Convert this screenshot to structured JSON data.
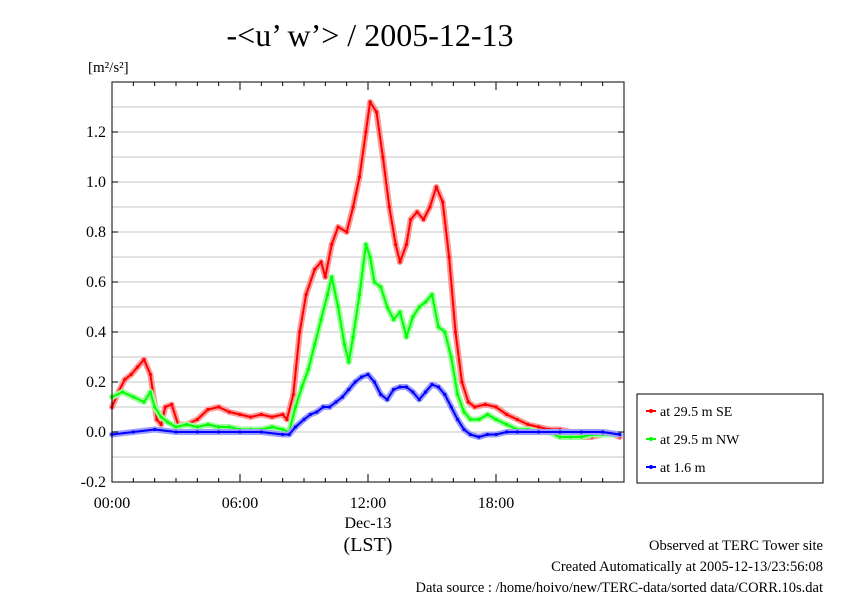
{
  "chart_data": {
    "type": "line",
    "title": "-<u’ w’> / 2005-12-13",
    "yunit": "[m²/s²]",
    "xlabel": "(LST)",
    "date_label": "Dec-13",
    "x_ticks": [
      "00:00",
      "06:00",
      "12:00",
      "18:00"
    ],
    "y_ticks": [
      "-0.2",
      "0.0",
      "0.2",
      "0.4",
      "0.6",
      "0.8",
      "1.0",
      "1.2"
    ],
    "xlim": [
      0,
      24
    ],
    "ylim": [
      -0.2,
      1.4
    ],
    "grid": true,
    "legend_position": "right",
    "series": [
      {
        "name": "at 29.5 m SE",
        "color": "#ff0000",
        "points": [
          [
            0.0,
            0.1
          ],
          [
            0.3,
            0.16
          ],
          [
            0.6,
            0.21
          ],
          [
            0.9,
            0.23
          ],
          [
            1.2,
            0.26
          ],
          [
            1.5,
            0.29
          ],
          [
            1.8,
            0.23
          ],
          [
            2.1,
            0.05
          ],
          [
            2.3,
            0.03
          ],
          [
            2.5,
            0.1
          ],
          [
            2.8,
            0.11
          ],
          [
            3.1,
            0.03
          ],
          [
            3.5,
            0.03
          ],
          [
            4.0,
            0.05
          ],
          [
            4.5,
            0.09
          ],
          [
            5.0,
            0.1
          ],
          [
            5.5,
            0.08
          ],
          [
            6.0,
            0.07
          ],
          [
            6.5,
            0.06
          ],
          [
            7.0,
            0.07
          ],
          [
            7.5,
            0.06
          ],
          [
            8.0,
            0.07
          ],
          [
            8.2,
            0.05
          ],
          [
            8.5,
            0.15
          ],
          [
            8.8,
            0.4
          ],
          [
            9.1,
            0.55
          ],
          [
            9.5,
            0.65
          ],
          [
            9.8,
            0.68
          ],
          [
            10.0,
            0.62
          ],
          [
            10.3,
            0.75
          ],
          [
            10.6,
            0.82
          ],
          [
            11.0,
            0.8
          ],
          [
            11.3,
            0.9
          ],
          [
            11.6,
            1.02
          ],
          [
            11.9,
            1.2
          ],
          [
            12.1,
            1.32
          ],
          [
            12.4,
            1.28
          ],
          [
            12.7,
            1.1
          ],
          [
            13.0,
            0.9
          ],
          [
            13.3,
            0.75
          ],
          [
            13.5,
            0.68
          ],
          [
            13.8,
            0.75
          ],
          [
            14.0,
            0.85
          ],
          [
            14.3,
            0.88
          ],
          [
            14.6,
            0.85
          ],
          [
            14.9,
            0.9
          ],
          [
            15.2,
            0.98
          ],
          [
            15.5,
            0.92
          ],
          [
            15.8,
            0.7
          ],
          [
            16.1,
            0.4
          ],
          [
            16.4,
            0.2
          ],
          [
            16.7,
            0.12
          ],
          [
            17.0,
            0.1
          ],
          [
            17.5,
            0.11
          ],
          [
            18.0,
            0.1
          ],
          [
            18.5,
            0.07
          ],
          [
            19.0,
            0.05
          ],
          [
            19.5,
            0.03
          ],
          [
            20.0,
            0.02
          ],
          [
            20.5,
            0.01
          ],
          [
            21.0,
            0.01
          ],
          [
            21.5,
            0.0
          ],
          [
            22.0,
            -0.02
          ],
          [
            22.5,
            -0.02
          ],
          [
            23.0,
            -0.01
          ],
          [
            23.5,
            -0.01
          ],
          [
            23.8,
            -0.02
          ]
        ]
      },
      {
        "name": "at 29.5 m NW",
        "color": "#00ff00",
        "points": [
          [
            0.0,
            0.14
          ],
          [
            0.5,
            0.16
          ],
          [
            1.0,
            0.14
          ],
          [
            1.5,
            0.12
          ],
          [
            1.8,
            0.16
          ],
          [
            2.0,
            0.1
          ],
          [
            2.3,
            0.06
          ],
          [
            2.6,
            0.04
          ],
          [
            3.0,
            0.02
          ],
          [
            3.5,
            0.03
          ],
          [
            4.0,
            0.02
          ],
          [
            4.5,
            0.03
          ],
          [
            5.0,
            0.02
          ],
          [
            5.5,
            0.02
          ],
          [
            6.0,
            0.01
          ],
          [
            6.5,
            0.01
          ],
          [
            7.0,
            0.01
          ],
          [
            7.5,
            0.02
          ],
          [
            8.0,
            0.01
          ],
          [
            8.3,
            0.0
          ],
          [
            8.6,
            0.1
          ],
          [
            8.9,
            0.18
          ],
          [
            9.2,
            0.25
          ],
          [
            9.5,
            0.35
          ],
          [
            9.8,
            0.45
          ],
          [
            10.1,
            0.55
          ],
          [
            10.3,
            0.62
          ],
          [
            10.6,
            0.5
          ],
          [
            10.9,
            0.35
          ],
          [
            11.1,
            0.28
          ],
          [
            11.3,
            0.38
          ],
          [
            11.6,
            0.55
          ],
          [
            11.9,
            0.75
          ],
          [
            12.1,
            0.7
          ],
          [
            12.3,
            0.6
          ],
          [
            12.6,
            0.58
          ],
          [
            12.9,
            0.5
          ],
          [
            13.2,
            0.45
          ],
          [
            13.5,
            0.48
          ],
          [
            13.8,
            0.38
          ],
          [
            14.1,
            0.46
          ],
          [
            14.4,
            0.5
          ],
          [
            14.7,
            0.52
          ],
          [
            15.0,
            0.55
          ],
          [
            15.3,
            0.42
          ],
          [
            15.6,
            0.4
          ],
          [
            15.9,
            0.3
          ],
          [
            16.2,
            0.15
          ],
          [
            16.5,
            0.08
          ],
          [
            16.8,
            0.05
          ],
          [
            17.2,
            0.05
          ],
          [
            17.6,
            0.07
          ],
          [
            18.0,
            0.05
          ],
          [
            18.5,
            0.03
          ],
          [
            19.0,
            0.01
          ],
          [
            19.5,
            0.01
          ],
          [
            20.0,
            0.0
          ],
          [
            20.5,
            0.0
          ],
          [
            21.0,
            -0.02
          ],
          [
            21.5,
            -0.02
          ],
          [
            22.0,
            -0.02
          ],
          [
            22.5,
            -0.01
          ],
          [
            23.0,
            -0.01
          ],
          [
            23.5,
            -0.01
          ],
          [
            23.8,
            -0.01
          ]
        ]
      },
      {
        "name": "at 1.6 m",
        "color": "#0000ff",
        "points": [
          [
            0.0,
            -0.01
          ],
          [
            1.0,
            0.0
          ],
          [
            2.0,
            0.01
          ],
          [
            3.0,
            0.0
          ],
          [
            4.0,
            0.0
          ],
          [
            5.0,
            0.0
          ],
          [
            6.0,
            0.0
          ],
          [
            7.0,
            0.0
          ],
          [
            8.0,
            -0.01
          ],
          [
            8.3,
            -0.01
          ],
          [
            8.6,
            0.02
          ],
          [
            9.0,
            0.05
          ],
          [
            9.3,
            0.07
          ],
          [
            9.6,
            0.08
          ],
          [
            9.9,
            0.1
          ],
          [
            10.2,
            0.1
          ],
          [
            10.5,
            0.12
          ],
          [
            10.8,
            0.14
          ],
          [
            11.1,
            0.17
          ],
          [
            11.4,
            0.2
          ],
          [
            11.7,
            0.22
          ],
          [
            12.0,
            0.23
          ],
          [
            12.3,
            0.2
          ],
          [
            12.6,
            0.15
          ],
          [
            12.9,
            0.13
          ],
          [
            13.2,
            0.17
          ],
          [
            13.5,
            0.18
          ],
          [
            13.8,
            0.18
          ],
          [
            14.1,
            0.16
          ],
          [
            14.4,
            0.13
          ],
          [
            14.7,
            0.16
          ],
          [
            15.0,
            0.19
          ],
          [
            15.3,
            0.18
          ],
          [
            15.6,
            0.15
          ],
          [
            15.9,
            0.1
          ],
          [
            16.2,
            0.05
          ],
          [
            16.5,
            0.01
          ],
          [
            16.8,
            -0.01
          ],
          [
            17.2,
            -0.02
          ],
          [
            17.6,
            -0.01
          ],
          [
            18.0,
            -0.01
          ],
          [
            18.5,
            0.0
          ],
          [
            19.0,
            0.0
          ],
          [
            20.0,
            0.0
          ],
          [
            21.0,
            0.0
          ],
          [
            22.0,
            0.0
          ],
          [
            23.0,
            0.0
          ],
          [
            23.8,
            -0.01
          ]
        ]
      }
    ]
  },
  "footer": {
    "site": "Observed at TERC Tower site",
    "created": "Created Automatically at 2005-12-13/23:56:08",
    "source": "Data source : /home/hoivo/new/TERC-data/sorted  data/CORR.10s.dat"
  }
}
